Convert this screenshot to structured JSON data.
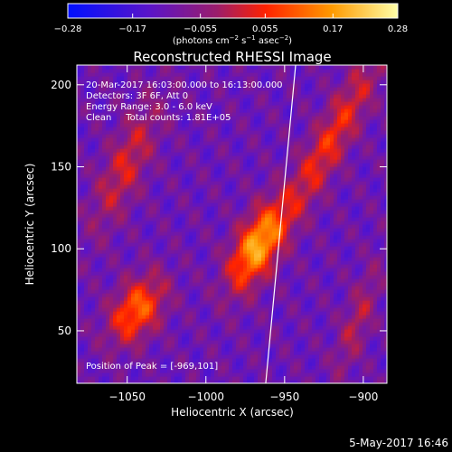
{
  "chart_data": {
    "type": "heatmap",
    "title": "Reconstructed RHESSI Image",
    "xlabel": "Heliocentric X (arcsec)",
    "ylabel": "Heliocentric Y (arcsec)",
    "xlim": [
      -1082,
      -885
    ],
    "ylim": [
      18,
      212
    ],
    "xticks": [
      -1050,
      -1000,
      -950,
      -900
    ],
    "xtick_labels": [
      "−1050",
      "−1000",
      "−950",
      "−900"
    ],
    "yticks": [
      50,
      100,
      150,
      200
    ],
    "ytick_labels": [
      "50",
      "100",
      "150",
      "200"
    ],
    "colorbar": {
      "range": [
        -0.28,
        0.28
      ],
      "ticks": [
        -0.28,
        -0.17,
        -0.055,
        0.055,
        0.17,
        0.28
      ],
      "tick_labels": [
        "−0.28",
        "−0.17",
        "−0.055",
        "0.055",
        "0.17",
        "0.28"
      ],
      "units_prefix": "(photons cm",
      "units_sup1": "−2",
      "units_mid1": " s",
      "units_sup2": "−1",
      "units_mid2": " asec",
      "units_sup3": "−2",
      "units_suffix": ")"
    },
    "annotations": [
      "20-Mar-2017 16:03:00.000 to 16:13:00.000",
      "Detectors: 3F 6F, Att 0",
      "Energy Range: 3.0 - 6.0 keV",
      "Clean     Total counts: 1.81E+05"
    ],
    "peak_label": "Position of Peak = [-969,101]",
    "peak": {
      "x": -969,
      "y": 101,
      "value": 0.28
    },
    "sources": [
      {
        "x": -969,
        "y": 101,
        "amp": 0.28,
        "sx": 9,
        "sy": 20,
        "angle_deg": 28
      },
      {
        "x": -1045,
        "y": 62,
        "amp": 0.22,
        "sx": 10,
        "sy": 16,
        "angle_deg": 35
      },
      {
        "x": -922,
        "y": 165,
        "amp": 0.16,
        "sx": 8,
        "sy": 45,
        "angle_deg": 30
      },
      {
        "x": -1052,
        "y": 150,
        "amp": 0.13,
        "sx": 9,
        "sy": 30,
        "angle_deg": 25
      },
      {
        "x": -905,
        "y": 55,
        "amp": 0.1,
        "sx": 6,
        "sy": 25,
        "angle_deg": 20
      }
    ],
    "limb_line": {
      "x": [
        -962,
        -943
      ],
      "y": [
        18,
        212
      ]
    },
    "grid": false,
    "timestamp": "5-May-2017 16:46"
  }
}
